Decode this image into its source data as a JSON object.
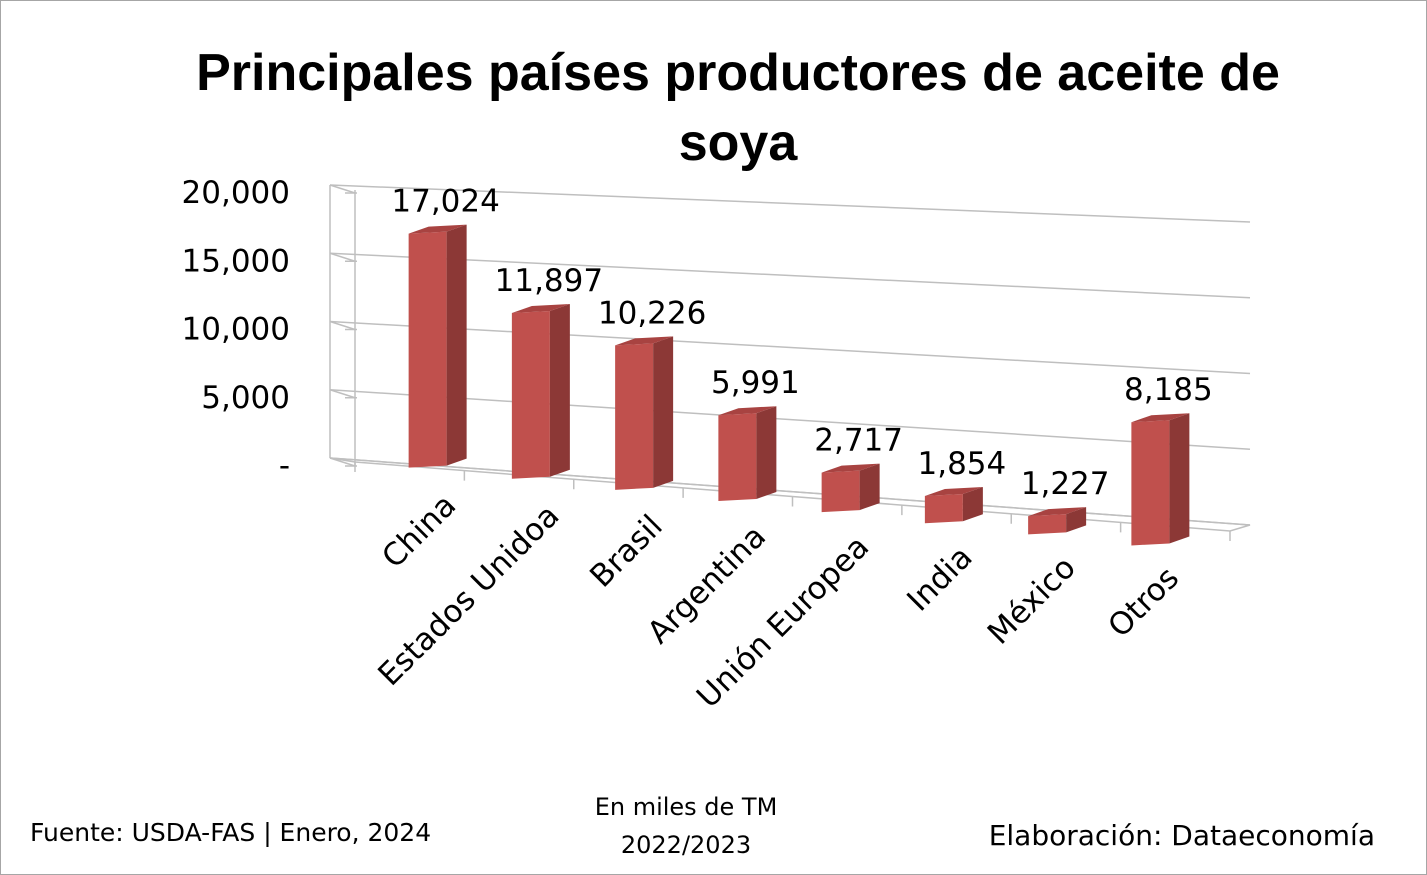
{
  "chart_data": {
    "type": "bar",
    "title": "Principales países productores de aceite de soya",
    "title_lines": [
      "Principales países productores de aceite de",
      "soya"
    ],
    "categories": [
      "China",
      "Estados Unidoa",
      "Brasil",
      "Argentina",
      "Unión Europea",
      "India",
      "México",
      "Otros"
    ],
    "values": [
      17024,
      11897,
      10226,
      5991,
      2717,
      1854,
      1227,
      8185
    ],
    "value_labels": [
      "17,024",
      "11,897",
      "10,226",
      "5,991",
      "2,717",
      "1,854",
      "1,227",
      "8,185"
    ],
    "yticks": [
      "-",
      "5,000",
      "10,000",
      "15,000",
      "20,000"
    ],
    "ylim": [
      0,
      20000
    ],
    "grid": true,
    "three_d": true,
    "bar_color": "#c0504d",
    "legend": "none"
  },
  "footer": {
    "source": "Fuente:  USDA-FAS | Enero, 2024",
    "units_line1": "En miles de TM",
    "units_line2": "2022/2023",
    "credit": "Elaboración: Dataeconomía"
  }
}
